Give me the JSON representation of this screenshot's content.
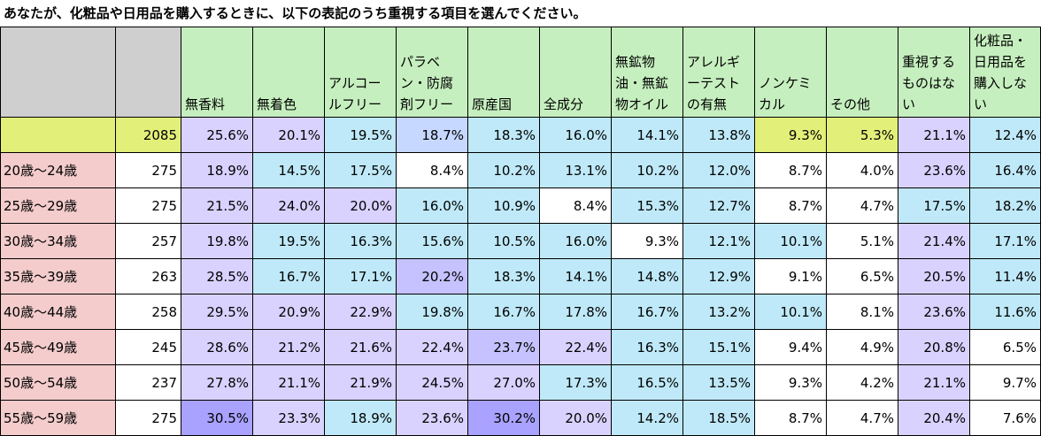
{
  "title": "あなたが、化粧品や日用品を購入するときに、以下の表記のうち重視する項目を選んでください。",
  "columns": [
    {
      "label": "無香料",
      "bg": "#d9d2ff"
    },
    {
      "label": "無着色",
      "bg": "#d9d2ff"
    },
    {
      "label": "アルコールフリー",
      "bg": "#bfe9f8"
    },
    {
      "label": "パラベン・防腐剤フリー",
      "bg": "#c6d8ff"
    },
    {
      "label": "原産国",
      "bg": "#bfe9f8"
    },
    {
      "label": "全成分",
      "bg": "#bfe9f8"
    },
    {
      "label": "無鉱物油・無鉱物オイル",
      "bg": "#bfe9f8"
    },
    {
      "label": "アレルギーテストの有無",
      "bg": "#bfe9f8"
    },
    {
      "label": "ノンケミカル",
      "bg": "#e2f07a"
    },
    {
      "label": "その他",
      "bg": "#e2f07a"
    },
    {
      "label": "重視するものはない",
      "bg": "#d9d2ff"
    },
    {
      "label": "化粧品・日用品を購入しない",
      "bg": "#bfe9f8"
    }
  ],
  "header_bg": "#c6efbf",
  "rows": [
    {
      "label": "",
      "n": "2085",
      "type": "total",
      "cells": [
        [
          "25.6%",
          "#d9d2ff"
        ],
        [
          "20.1%",
          "#d9d2ff"
        ],
        [
          "19.5%",
          "#bfe9f8"
        ],
        [
          "18.7%",
          "#c6d8ff"
        ],
        [
          "18.3%",
          "#bfe9f8"
        ],
        [
          "16.0%",
          "#bfe9f8"
        ],
        [
          "14.1%",
          "#bfe9f8"
        ],
        [
          "13.8%",
          "#bfe9f8"
        ],
        [
          "9.3%",
          "#e2f07a"
        ],
        [
          "5.3%",
          "#e2f07a"
        ],
        [
          "21.1%",
          "#d9d2ff"
        ],
        [
          "12.4%",
          "#bfe9f8"
        ]
      ]
    },
    {
      "label": "20歳～24歳",
      "n": "275",
      "type": "row",
      "cells": [
        [
          "18.9%",
          "#d9d2ff"
        ],
        [
          "14.5%",
          "#bfe9f8"
        ],
        [
          "17.5%",
          "#bfe9f8"
        ],
        [
          "8.4%",
          "#ffffff"
        ],
        [
          "10.2%",
          "#bfe9f8"
        ],
        [
          "13.1%",
          "#bfe9f8"
        ],
        [
          "10.2%",
          "#bfe9f8"
        ],
        [
          "12.0%",
          "#bfe9f8"
        ],
        [
          "8.7%",
          "#ffffff"
        ],
        [
          "4.0%",
          "#ffffff"
        ],
        [
          "23.6%",
          "#d9d2ff"
        ],
        [
          "16.4%",
          "#bfe9f8"
        ]
      ]
    },
    {
      "label": "25歳～29歳",
      "n": "275",
      "type": "row",
      "cells": [
        [
          "21.5%",
          "#d9d2ff"
        ],
        [
          "24.0%",
          "#d9d2ff"
        ],
        [
          "20.0%",
          "#d9d2ff"
        ],
        [
          "16.0%",
          "#bfe9f8"
        ],
        [
          "10.9%",
          "#bfe9f8"
        ],
        [
          "8.4%",
          "#ffffff"
        ],
        [
          "15.3%",
          "#bfe9f8"
        ],
        [
          "12.7%",
          "#bfe9f8"
        ],
        [
          "8.7%",
          "#ffffff"
        ],
        [
          "4.7%",
          "#ffffff"
        ],
        [
          "17.5%",
          "#bfe9f8"
        ],
        [
          "18.2%",
          "#bfe9f8"
        ]
      ]
    },
    {
      "label": "30歳～34歳",
      "n": "257",
      "type": "row",
      "cells": [
        [
          "19.8%",
          "#d9d2ff"
        ],
        [
          "19.5%",
          "#bfe9f8"
        ],
        [
          "16.3%",
          "#bfe9f8"
        ],
        [
          "15.6%",
          "#bfe9f8"
        ],
        [
          "10.5%",
          "#bfe9f8"
        ],
        [
          "16.0%",
          "#bfe9f8"
        ],
        [
          "9.3%",
          "#ffffff"
        ],
        [
          "12.1%",
          "#bfe9f8"
        ],
        [
          "10.1%",
          "#bfe9f8"
        ],
        [
          "5.1%",
          "#ffffff"
        ],
        [
          "21.4%",
          "#d9d2ff"
        ],
        [
          "17.1%",
          "#bfe9f8"
        ]
      ]
    },
    {
      "label": "35歳～39歳",
      "n": "263",
      "type": "row",
      "cells": [
        [
          "28.5%",
          "#d9d2ff"
        ],
        [
          "16.7%",
          "#bfe9f8"
        ],
        [
          "17.1%",
          "#bfe9f8"
        ],
        [
          "20.2%",
          "#c6c2ff"
        ],
        [
          "18.3%",
          "#bfe9f8"
        ],
        [
          "14.1%",
          "#bfe9f8"
        ],
        [
          "14.8%",
          "#bfe9f8"
        ],
        [
          "12.9%",
          "#bfe9f8"
        ],
        [
          "9.1%",
          "#ffffff"
        ],
        [
          "6.5%",
          "#ffffff"
        ],
        [
          "20.5%",
          "#d9d2ff"
        ],
        [
          "11.4%",
          "#bfe9f8"
        ]
      ]
    },
    {
      "label": "40歳～44歳",
      "n": "258",
      "type": "row",
      "cells": [
        [
          "29.5%",
          "#d9d2ff"
        ],
        [
          "20.9%",
          "#d9d2ff"
        ],
        [
          "22.9%",
          "#d9d2ff"
        ],
        [
          "19.8%",
          "#bfe9f8"
        ],
        [
          "16.7%",
          "#bfe9f8"
        ],
        [
          "17.8%",
          "#bfe9f8"
        ],
        [
          "16.7%",
          "#bfe9f8"
        ],
        [
          "13.2%",
          "#bfe9f8"
        ],
        [
          "10.1%",
          "#bfe9f8"
        ],
        [
          "8.1%",
          "#ffffff"
        ],
        [
          "23.6%",
          "#d9d2ff"
        ],
        [
          "11.6%",
          "#bfe9f8"
        ]
      ]
    },
    {
      "label": "45歳～49歳",
      "n": "245",
      "type": "row",
      "cells": [
        [
          "28.6%",
          "#d9d2ff"
        ],
        [
          "21.2%",
          "#d9d2ff"
        ],
        [
          "21.6%",
          "#d9d2ff"
        ],
        [
          "22.4%",
          "#d9d2ff"
        ],
        [
          "23.7%",
          "#c6c2ff"
        ],
        [
          "22.4%",
          "#d9d2ff"
        ],
        [
          "16.3%",
          "#bfe9f8"
        ],
        [
          "15.1%",
          "#bfe9f8"
        ],
        [
          "9.4%",
          "#ffffff"
        ],
        [
          "4.9%",
          "#ffffff"
        ],
        [
          "20.8%",
          "#d9d2ff"
        ],
        [
          "6.5%",
          "#ffffff"
        ]
      ]
    },
    {
      "label": "50歳～54歳",
      "n": "237",
      "type": "row",
      "cells": [
        [
          "27.8%",
          "#d9d2ff"
        ],
        [
          "21.1%",
          "#d9d2ff"
        ],
        [
          "21.9%",
          "#d9d2ff"
        ],
        [
          "24.5%",
          "#d9d2ff"
        ],
        [
          "27.0%",
          "#d9d2ff"
        ],
        [
          "17.3%",
          "#bfe9f8"
        ],
        [
          "16.5%",
          "#bfe9f8"
        ],
        [
          "13.5%",
          "#bfe9f8"
        ],
        [
          "9.3%",
          "#ffffff"
        ],
        [
          "4.2%",
          "#ffffff"
        ],
        [
          "21.1%",
          "#d9d2ff"
        ],
        [
          "9.7%",
          "#ffffff"
        ]
      ]
    },
    {
      "label": "55歳～59歳",
      "n": "275",
      "type": "row",
      "cells": [
        [
          "30.5%",
          "#a9a2ff"
        ],
        [
          "23.3%",
          "#d9d2ff"
        ],
        [
          "18.9%",
          "#bfe9f8"
        ],
        [
          "23.6%",
          "#d9d2ff"
        ],
        [
          "30.2%",
          "#a9a2ff"
        ],
        [
          "20.0%",
          "#d9d2ff"
        ],
        [
          "14.2%",
          "#bfe9f8"
        ],
        [
          "18.5%",
          "#bfe9f8"
        ],
        [
          "8.7%",
          "#ffffff"
        ],
        [
          "4.7%",
          "#ffffff"
        ],
        [
          "20.4%",
          "#d9d2ff"
        ],
        [
          "7.6%",
          "#ffffff"
        ]
      ]
    }
  ]
}
